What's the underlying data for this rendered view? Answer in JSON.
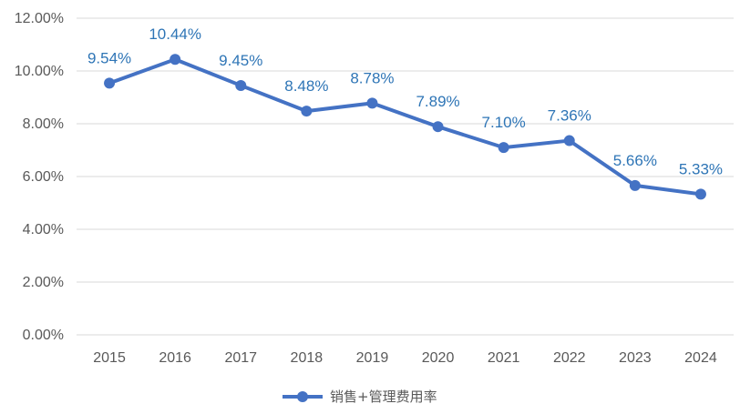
{
  "chart_data": {
    "type": "line",
    "title": "",
    "xlabel": "",
    "ylabel": "",
    "categories": [
      "2015",
      "2016",
      "2017",
      "2018",
      "2019",
      "2020",
      "2021",
      "2022",
      "2023",
      "2024"
    ],
    "series": [
      {
        "name": "销售+管理费用率",
        "values": [
          9.54,
          10.44,
          9.45,
          8.48,
          8.78,
          7.89,
          7.1,
          7.36,
          5.66,
          5.33
        ],
        "labels": [
          "9.54%",
          "10.44%",
          "9.45%",
          "8.48%",
          "8.78%",
          "7.89%",
          "7.10%",
          "7.36%",
          "5.66%",
          "5.33%"
        ],
        "color": "#4472c4",
        "label_color": "#2e75b6"
      }
    ],
    "ylim": [
      0,
      12
    ],
    "yticks": [
      0,
      2,
      4,
      6,
      8,
      10,
      12
    ],
    "ytick_labels": [
      "0.00%",
      "2.00%",
      "4.00%",
      "6.00%",
      "8.00%",
      "10.00%",
      "12.00%"
    ],
    "grid": true,
    "legend_position": "bottom"
  }
}
